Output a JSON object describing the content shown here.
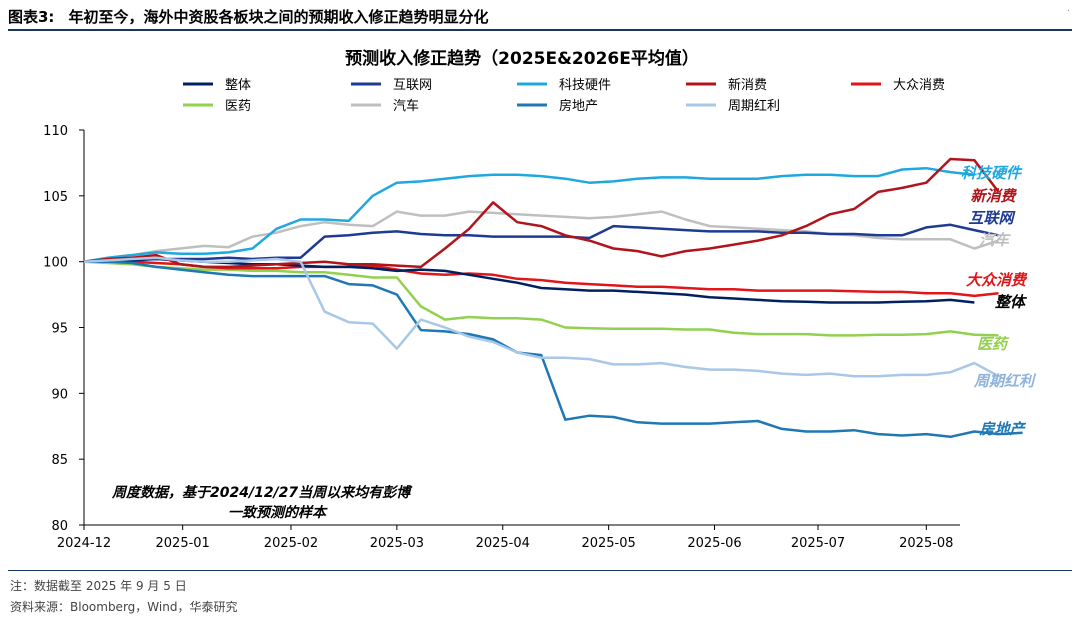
{
  "exhibit": {
    "label": "图表3:",
    "title": "年初至今，海外中资股各板块之间的预期收入修正趋势明显分化"
  },
  "footnotes": {
    "note": "注：数据截至 2025 年 9 月 5 日",
    "source": "资料来源：Bloomberg，Wind，华泰研究"
  },
  "chart_data": {
    "type": "line",
    "title": "预测收入修正趋势（2025E&2026E平均值）",
    "x_ticks": [
      "2024-12",
      "2025-01",
      "2025-02",
      "2025-03",
      "2025-04",
      "2025-05",
      "2025-06",
      "2025-07",
      "2025-08"
    ],
    "x_tick_weeks": [
      0,
      4.1,
      8.6,
      13,
      17.4,
      21.8,
      26.2,
      30.5,
      35
    ],
    "x_range_weeks": [
      0,
      36.4
    ],
    "y_range": [
      80,
      110
    ],
    "y_ticks": [
      80,
      85,
      90,
      95,
      100,
      105,
      110
    ],
    "grid": false,
    "legend_position": "top",
    "annotation": [
      "周度数据，基于2024/12/27当周以来均有彭博",
      "一致预测的样本"
    ],
    "series": [
      {
        "name": "整体",
        "color": "#002060",
        "end_label_color": "#000000",
        "values": [
          100,
          100.1,
          100.1,
          100.2,
          100.1,
          100.0,
          99.9,
          99.8,
          99.8,
          99.7,
          99.6,
          99.6,
          99.5,
          99.3,
          99.4,
          99.3,
          99.0,
          98.7,
          98.4,
          98.0,
          97.9,
          97.8,
          97.8,
          97.7,
          97.6,
          97.5,
          97.3,
          97.2,
          97.1,
          97.0,
          96.95,
          96.9,
          96.9,
          96.9,
          96.95,
          97.0,
          97.1,
          96.9
        ]
      },
      {
        "name": "互联网",
        "color": "#1f3a93",
        "end_label_color": "#1f3a93",
        "values": [
          100,
          100.0,
          100.2,
          100.2,
          100.2,
          100.2,
          100.3,
          100.2,
          100.3,
          100.3,
          101.9,
          102.0,
          102.2,
          102.3,
          102.1,
          102.0,
          102.0,
          101.9,
          101.9,
          101.9,
          101.9,
          101.8,
          102.7,
          102.6,
          102.5,
          102.4,
          102.3,
          102.3,
          102.3,
          102.2,
          102.2,
          102.1,
          102.1,
          102.0,
          102.0,
          102.6,
          102.8,
          102.4,
          102.0
        ]
      },
      {
        "name": "科技硬件",
        "color": "#1fa8e0",
        "end_label_color": "#1fa8e0",
        "values": [
          100,
          100.3,
          100.5,
          100.7,
          100.6,
          100.6,
          100.7,
          101.0,
          102.5,
          103.2,
          103.2,
          103.1,
          105.0,
          106.0,
          106.1,
          106.3,
          106.5,
          106.6,
          106.6,
          106.5,
          106.3,
          106.0,
          106.1,
          106.3,
          106.4,
          106.4,
          106.3,
          106.3,
          106.3,
          106.5,
          106.6,
          106.6,
          106.5,
          106.5,
          107.0,
          107.1,
          106.8,
          106.6
        ]
      },
      {
        "name": "新消费",
        "color": "#b0151b",
        "end_label_color": "#b0151b",
        "values": [
          100,
          100.2,
          100.3,
          100.5,
          99.8,
          99.6,
          99.6,
          99.7,
          99.8,
          99.9,
          100.0,
          99.8,
          99.8,
          99.7,
          99.6,
          101.0,
          102.5,
          104.5,
          103.0,
          102.7,
          102.0,
          101.6,
          101.0,
          100.8,
          100.4,
          100.8,
          101.0,
          101.3,
          101.6,
          102.0,
          102.7,
          103.6,
          104.0,
          105.3,
          105.6,
          106.0,
          107.8,
          107.7,
          105.3
        ]
      },
      {
        "name": "大众消费",
        "color": "#e0161b",
        "end_label_color": "#e0161b",
        "values": [
          100,
          100.0,
          100.0,
          99.9,
          99.8,
          99.6,
          99.5,
          99.5,
          99.5,
          99.6,
          99.6,
          99.6,
          99.7,
          99.4,
          99.1,
          99.0,
          99.1,
          99.0,
          98.7,
          98.6,
          98.4,
          98.3,
          98.2,
          98.1,
          98.1,
          98.0,
          97.9,
          97.9,
          97.8,
          97.8,
          97.8,
          97.8,
          97.75,
          97.7,
          97.7,
          97.6,
          97.6,
          97.4,
          97.6
        ]
      },
      {
        "name": "医药",
        "color": "#92d050",
        "end_label_color": "#92d050",
        "values": [
          100,
          99.9,
          99.8,
          99.6,
          99.5,
          99.4,
          99.4,
          99.3,
          99.3,
          99.2,
          99.2,
          99.0,
          98.8,
          98.8,
          96.6,
          95.6,
          95.8,
          95.7,
          95.7,
          95.6,
          95.0,
          94.95,
          94.9,
          94.9,
          94.9,
          94.85,
          94.85,
          94.6,
          94.5,
          94.5,
          94.5,
          94.4,
          94.4,
          94.45,
          94.45,
          94.5,
          94.7,
          94.45,
          94.4
        ]
      },
      {
        "name": "汽车",
        "color": "#bfbfbf",
        "end_label_color": "#bfbfbf",
        "values": [
          100,
          100.3,
          100.5,
          100.8,
          101.0,
          101.2,
          101.1,
          101.9,
          102.2,
          102.7,
          103.0,
          102.8,
          102.7,
          103.8,
          103.5,
          103.5,
          103.8,
          103.7,
          103.6,
          103.5,
          103.4,
          103.3,
          103.4,
          103.6,
          103.8,
          103.2,
          102.7,
          102.6,
          102.5,
          102.4,
          102.3,
          102.1,
          102.0,
          101.8,
          101.7,
          101.7,
          101.7,
          101.0,
          101.6
        ]
      },
      {
        "name": "房地产",
        "color": "#1f78b4",
        "end_label_color": "#1f78b4",
        "values": [
          100,
          100.0,
          99.9,
          99.6,
          99.4,
          99.2,
          99.0,
          98.9,
          98.9,
          98.9,
          98.9,
          98.3,
          98.2,
          97.5,
          94.8,
          94.7,
          94.5,
          94.1,
          93.1,
          92.9,
          88.0,
          88.3,
          88.2,
          87.8,
          87.7,
          87.7,
          87.7,
          87.8,
          87.9,
          87.3,
          87.1,
          87.1,
          87.2,
          86.9,
          86.8,
          86.9,
          86.7,
          87.1,
          86.9,
          87.0
        ]
      },
      {
        "name": "周期红利",
        "color": "#a9c8e8",
        "end_label_color": "#8fb4dc",
        "values": [
          100,
          100.1,
          100.2,
          100.3,
          100.1,
          100.0,
          100.0,
          100.1,
          100.2,
          100.0,
          96.2,
          95.4,
          95.3,
          93.4,
          95.6,
          95.0,
          94.3,
          93.9,
          93.1,
          92.7,
          92.7,
          92.6,
          92.2,
          92.2,
          92.3,
          92.0,
          91.8,
          91.8,
          91.7,
          91.5,
          91.4,
          91.5,
          91.3,
          91.3,
          91.4,
          91.4,
          91.6,
          92.3,
          91.3
        ]
      }
    ]
  }
}
